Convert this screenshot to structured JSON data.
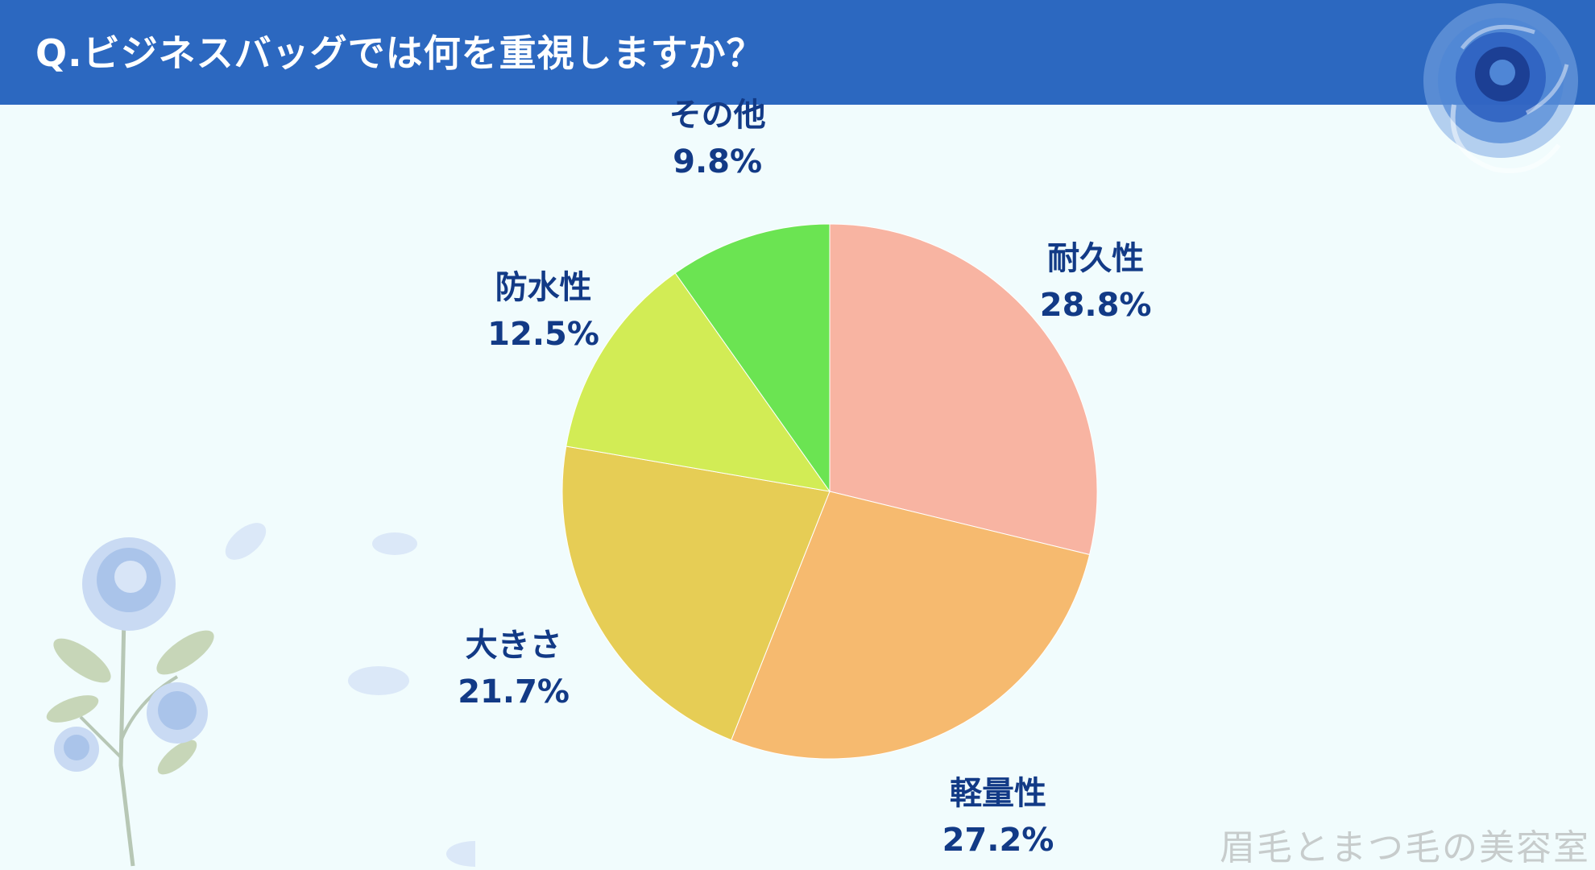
{
  "header": {
    "title": "Q.ビジネスバッグでは何を重視しますか？",
    "background": "#2c68c0"
  },
  "chart_data": {
    "type": "pie",
    "title": "Q.ビジネスバッグでは何を重視しますか？",
    "start": "12 o'clock, clockwise",
    "slices": [
      {
        "label": "耐久性",
        "value": 28.8,
        "value_label": "28.8%",
        "color": "#f8b4a2"
      },
      {
        "label": "軽量性",
        "value": 27.2,
        "value_label": "27.2%",
        "color": "#f6ba6f"
      },
      {
        "label": "大きさ",
        "value": 21.7,
        "value_label": "21.7%",
        "color": "#e6cd55"
      },
      {
        "label": "防水性",
        "value": 12.5,
        "value_label": "12.5%",
        "color": "#d2ec55"
      },
      {
        "label": "その他",
        "value": 9.8,
        "value_label": "9.8%",
        "color": "#6be452"
      }
    ],
    "label_color": "#123a86"
  },
  "decorations": {
    "corner_icon": "blue-rose-icon",
    "flower_icon": "blue-rose-branch-icon"
  },
  "watermark": "眉毛とまつ毛の美容室"
}
